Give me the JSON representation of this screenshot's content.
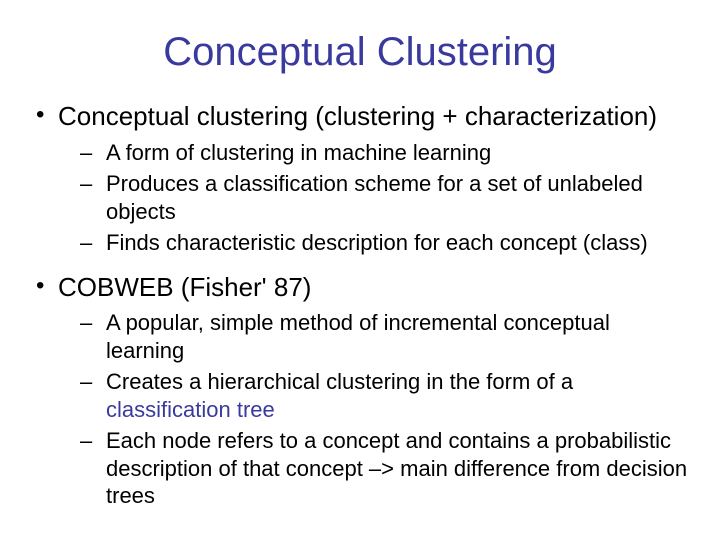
{
  "title": "Conceptual Clustering",
  "title_color": "#3a3a9e",
  "body_color": "#000000",
  "highlight_color": "#3a3a9e",
  "background_color": "#ffffff",
  "title_fontsize": 40,
  "level1_fontsize": 26,
  "level2_fontsize": 22,
  "bullets": [
    {
      "text": "Conceptual clustering (clustering + characterization)",
      "sub": [
        {
          "text": "A form of clustering in machine learning"
        },
        {
          "text": "Produces a classification scheme for a set of unlabeled objects"
        },
        {
          "text": "Finds characteristic description for each concept (class)"
        }
      ]
    },
    {
      "text": "COBWEB (Fisher' 87)",
      "sub": [
        {
          "text": "A popular, simple method of incremental conceptual learning"
        },
        {
          "prefix": "Creates a hierarchical clustering in the form of a ",
          "highlight": "classification tree"
        },
        {
          "text": "Each node refers to a concept and contains a probabilistic description of that concept –> main difference from decision trees"
        }
      ]
    }
  ]
}
